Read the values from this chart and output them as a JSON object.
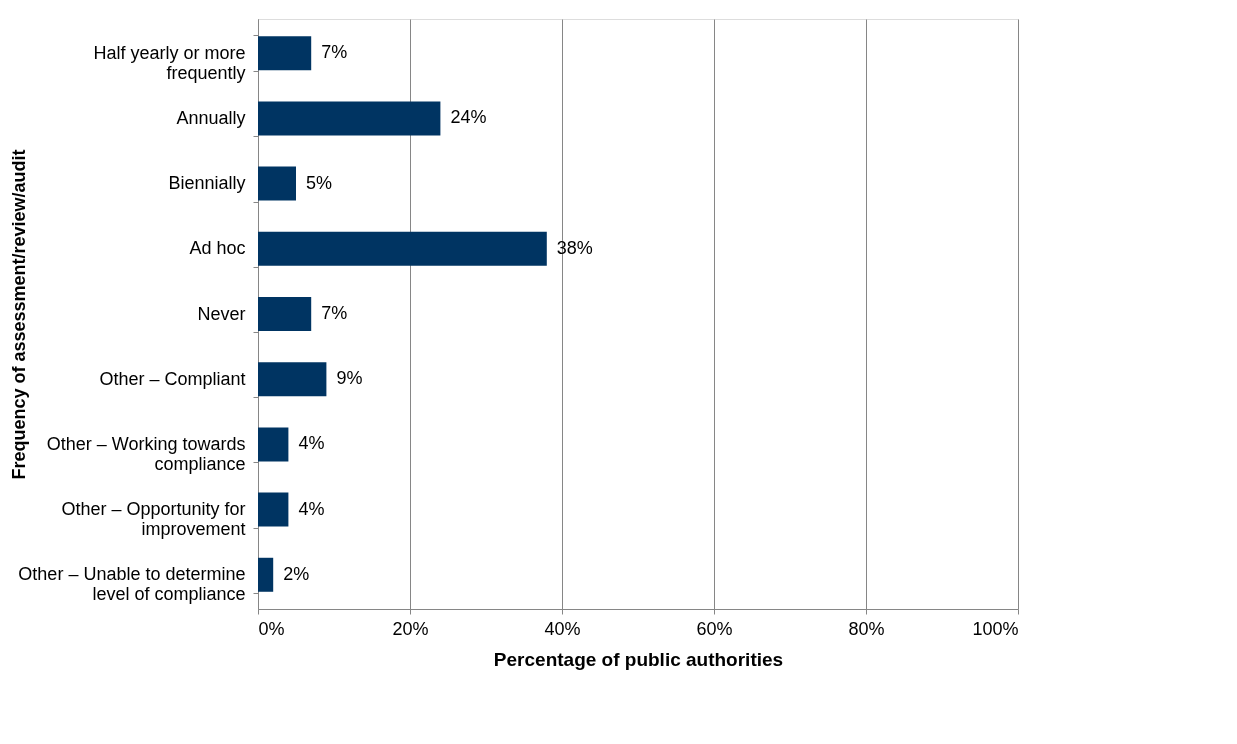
{
  "chart_data": {
    "type": "bar",
    "orientation": "horizontal",
    "xlabel": "Percentage of public authorities",
    "ylabel": "Frequency of assessment/review/audit",
    "categories": [
      "Half yearly or more frequently",
      "Annually",
      "Biennially",
      "Ad hoc",
      "Never",
      "Other – Compliant",
      "Other – Working towards compliance",
      "Other – Opportunity for improvement",
      "Other – Unable to determine level of compliance"
    ],
    "values": [
      7,
      24,
      5,
      38,
      7,
      9,
      4,
      4,
      2
    ],
    "value_labels": [
      "7%",
      "24%",
      "5%",
      "38%",
      "7%",
      "9%",
      "4%",
      "4%",
      "2%"
    ],
    "color": "#003462",
    "xlim": [
      0,
      100
    ],
    "xticks": [
      {
        "value": 0,
        "label": "0%"
      },
      {
        "value": 20,
        "label": "20%"
      },
      {
        "value": 40,
        "label": "40%"
      },
      {
        "value": 60,
        "label": "60%"
      },
      {
        "value": 80,
        "label": "80%"
      },
      {
        "value": 100,
        "label": "100%"
      }
    ],
    "grid": "x"
  }
}
